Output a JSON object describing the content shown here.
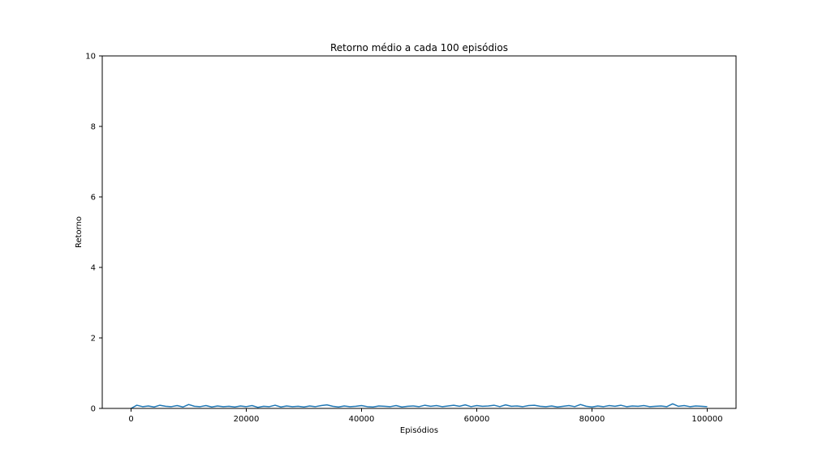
{
  "chart_data": {
    "type": "line",
    "title": "Retorno médio a cada 100 episódios",
    "xlabel": "Episódios",
    "ylabel": "Retorno",
    "xlim": [
      -5000,
      105000
    ],
    "ylim": [
      0,
      10
    ],
    "xticks": [
      0,
      20000,
      40000,
      60000,
      80000,
      100000
    ],
    "yticks": [
      0,
      2,
      4,
      6,
      8,
      10
    ],
    "grid": false,
    "series": [
      {
        "color": "#1f77b4",
        "x": [
          0,
          1000,
          2000,
          3000,
          4000,
          5000,
          6000,
          7000,
          8000,
          9000,
          10000,
          11000,
          12000,
          13000,
          14000,
          15000,
          16000,
          17000,
          18000,
          19000,
          20000,
          21000,
          22000,
          23000,
          24000,
          25000,
          26000,
          27000,
          28000,
          29000,
          30000,
          31000,
          32000,
          33000,
          34000,
          35000,
          36000,
          37000,
          38000,
          39000,
          40000,
          41000,
          42000,
          43000,
          44000,
          45000,
          46000,
          47000,
          48000,
          49000,
          50000,
          51000,
          52000,
          53000,
          54000,
          55000,
          56000,
          57000,
          58000,
          59000,
          60000,
          61000,
          62000,
          63000,
          64000,
          65000,
          66000,
          67000,
          68000,
          69000,
          70000,
          71000,
          72000,
          73000,
          74000,
          75000,
          76000,
          77000,
          78000,
          79000,
          80000,
          81000,
          82000,
          83000,
          84000,
          85000,
          86000,
          87000,
          88000,
          89000,
          90000,
          91000,
          92000,
          93000,
          94000,
          95000,
          96000,
          97000,
          98000,
          99000,
          100000
        ],
        "values": [
          0.0,
          0.09,
          0.05,
          0.07,
          0.04,
          0.09,
          0.06,
          0.05,
          0.08,
          0.04,
          0.11,
          0.06,
          0.05,
          0.08,
          0.04,
          0.07,
          0.05,
          0.06,
          0.04,
          0.07,
          0.05,
          0.08,
          0.03,
          0.06,
          0.05,
          0.09,
          0.04,
          0.07,
          0.05,
          0.06,
          0.04,
          0.07,
          0.05,
          0.08,
          0.1,
          0.06,
          0.04,
          0.07,
          0.05,
          0.06,
          0.08,
          0.05,
          0.04,
          0.07,
          0.06,
          0.05,
          0.08,
          0.04,
          0.06,
          0.07,
          0.05,
          0.09,
          0.06,
          0.08,
          0.05,
          0.07,
          0.09,
          0.06,
          0.1,
          0.05,
          0.08,
          0.06,
          0.07,
          0.09,
          0.05,
          0.1,
          0.06,
          0.07,
          0.05,
          0.08,
          0.09,
          0.06,
          0.05,
          0.07,
          0.04,
          0.06,
          0.08,
          0.05,
          0.11,
          0.06,
          0.04,
          0.07,
          0.05,
          0.08,
          0.06,
          0.09,
          0.05,
          0.07,
          0.06,
          0.08,
          0.05,
          0.06,
          0.07,
          0.05,
          0.13,
          0.06,
          0.08,
          0.05,
          0.07,
          0.06,
          0.05
        ]
      }
    ]
  }
}
